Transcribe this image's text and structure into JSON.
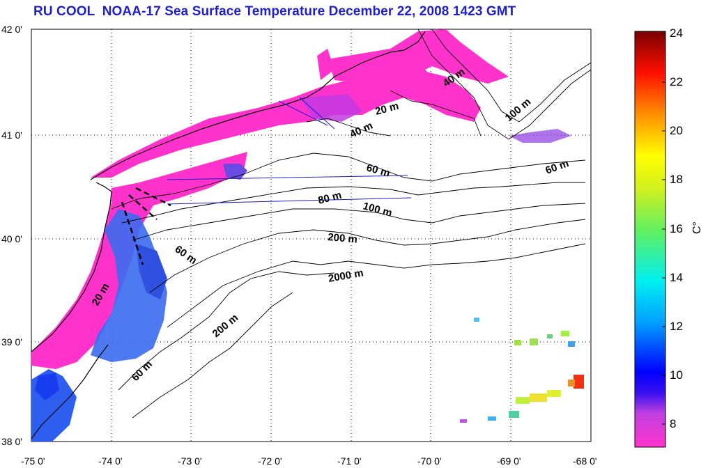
{
  "title": "RU COOL  NOAA-17 Sea Surface Temperature December 22, 2008 1423 GMT",
  "map": {
    "lon_ticks": [
      "-75 0'",
      "-74 0'",
      "-73 0'",
      "-72 0'",
      "-71 0'",
      "-70 0'",
      "-69 0'",
      "-68 0'"
    ],
    "lat_ticks": [
      "42 0'",
      "41 0'",
      "40 0'",
      "39 0'",
      "38 0'"
    ],
    "lon_range": [
      -75,
      -68
    ],
    "lat_range": [
      38,
      42
    ],
    "grid": "dotted",
    "contour_labels": [
      "40 m",
      "20 m",
      "40 m",
      "100 m",
      "60 m",
      "60 m",
      "80 m",
      "100 m",
      "200 m",
      "60 m",
      "2000 m",
      "20 m",
      "200 m",
      "60 m"
    ]
  },
  "colorbar": {
    "ticks": [
      "24",
      "22",
      "20",
      "18",
      "16",
      "14",
      "12",
      "10",
      "8"
    ],
    "unit": "C°",
    "range": [
      7,
      24
    ]
  },
  "colors": {
    "title": "#2020c8",
    "land": "#ffffff",
    "cold_water": "#ff33cc"
  }
}
